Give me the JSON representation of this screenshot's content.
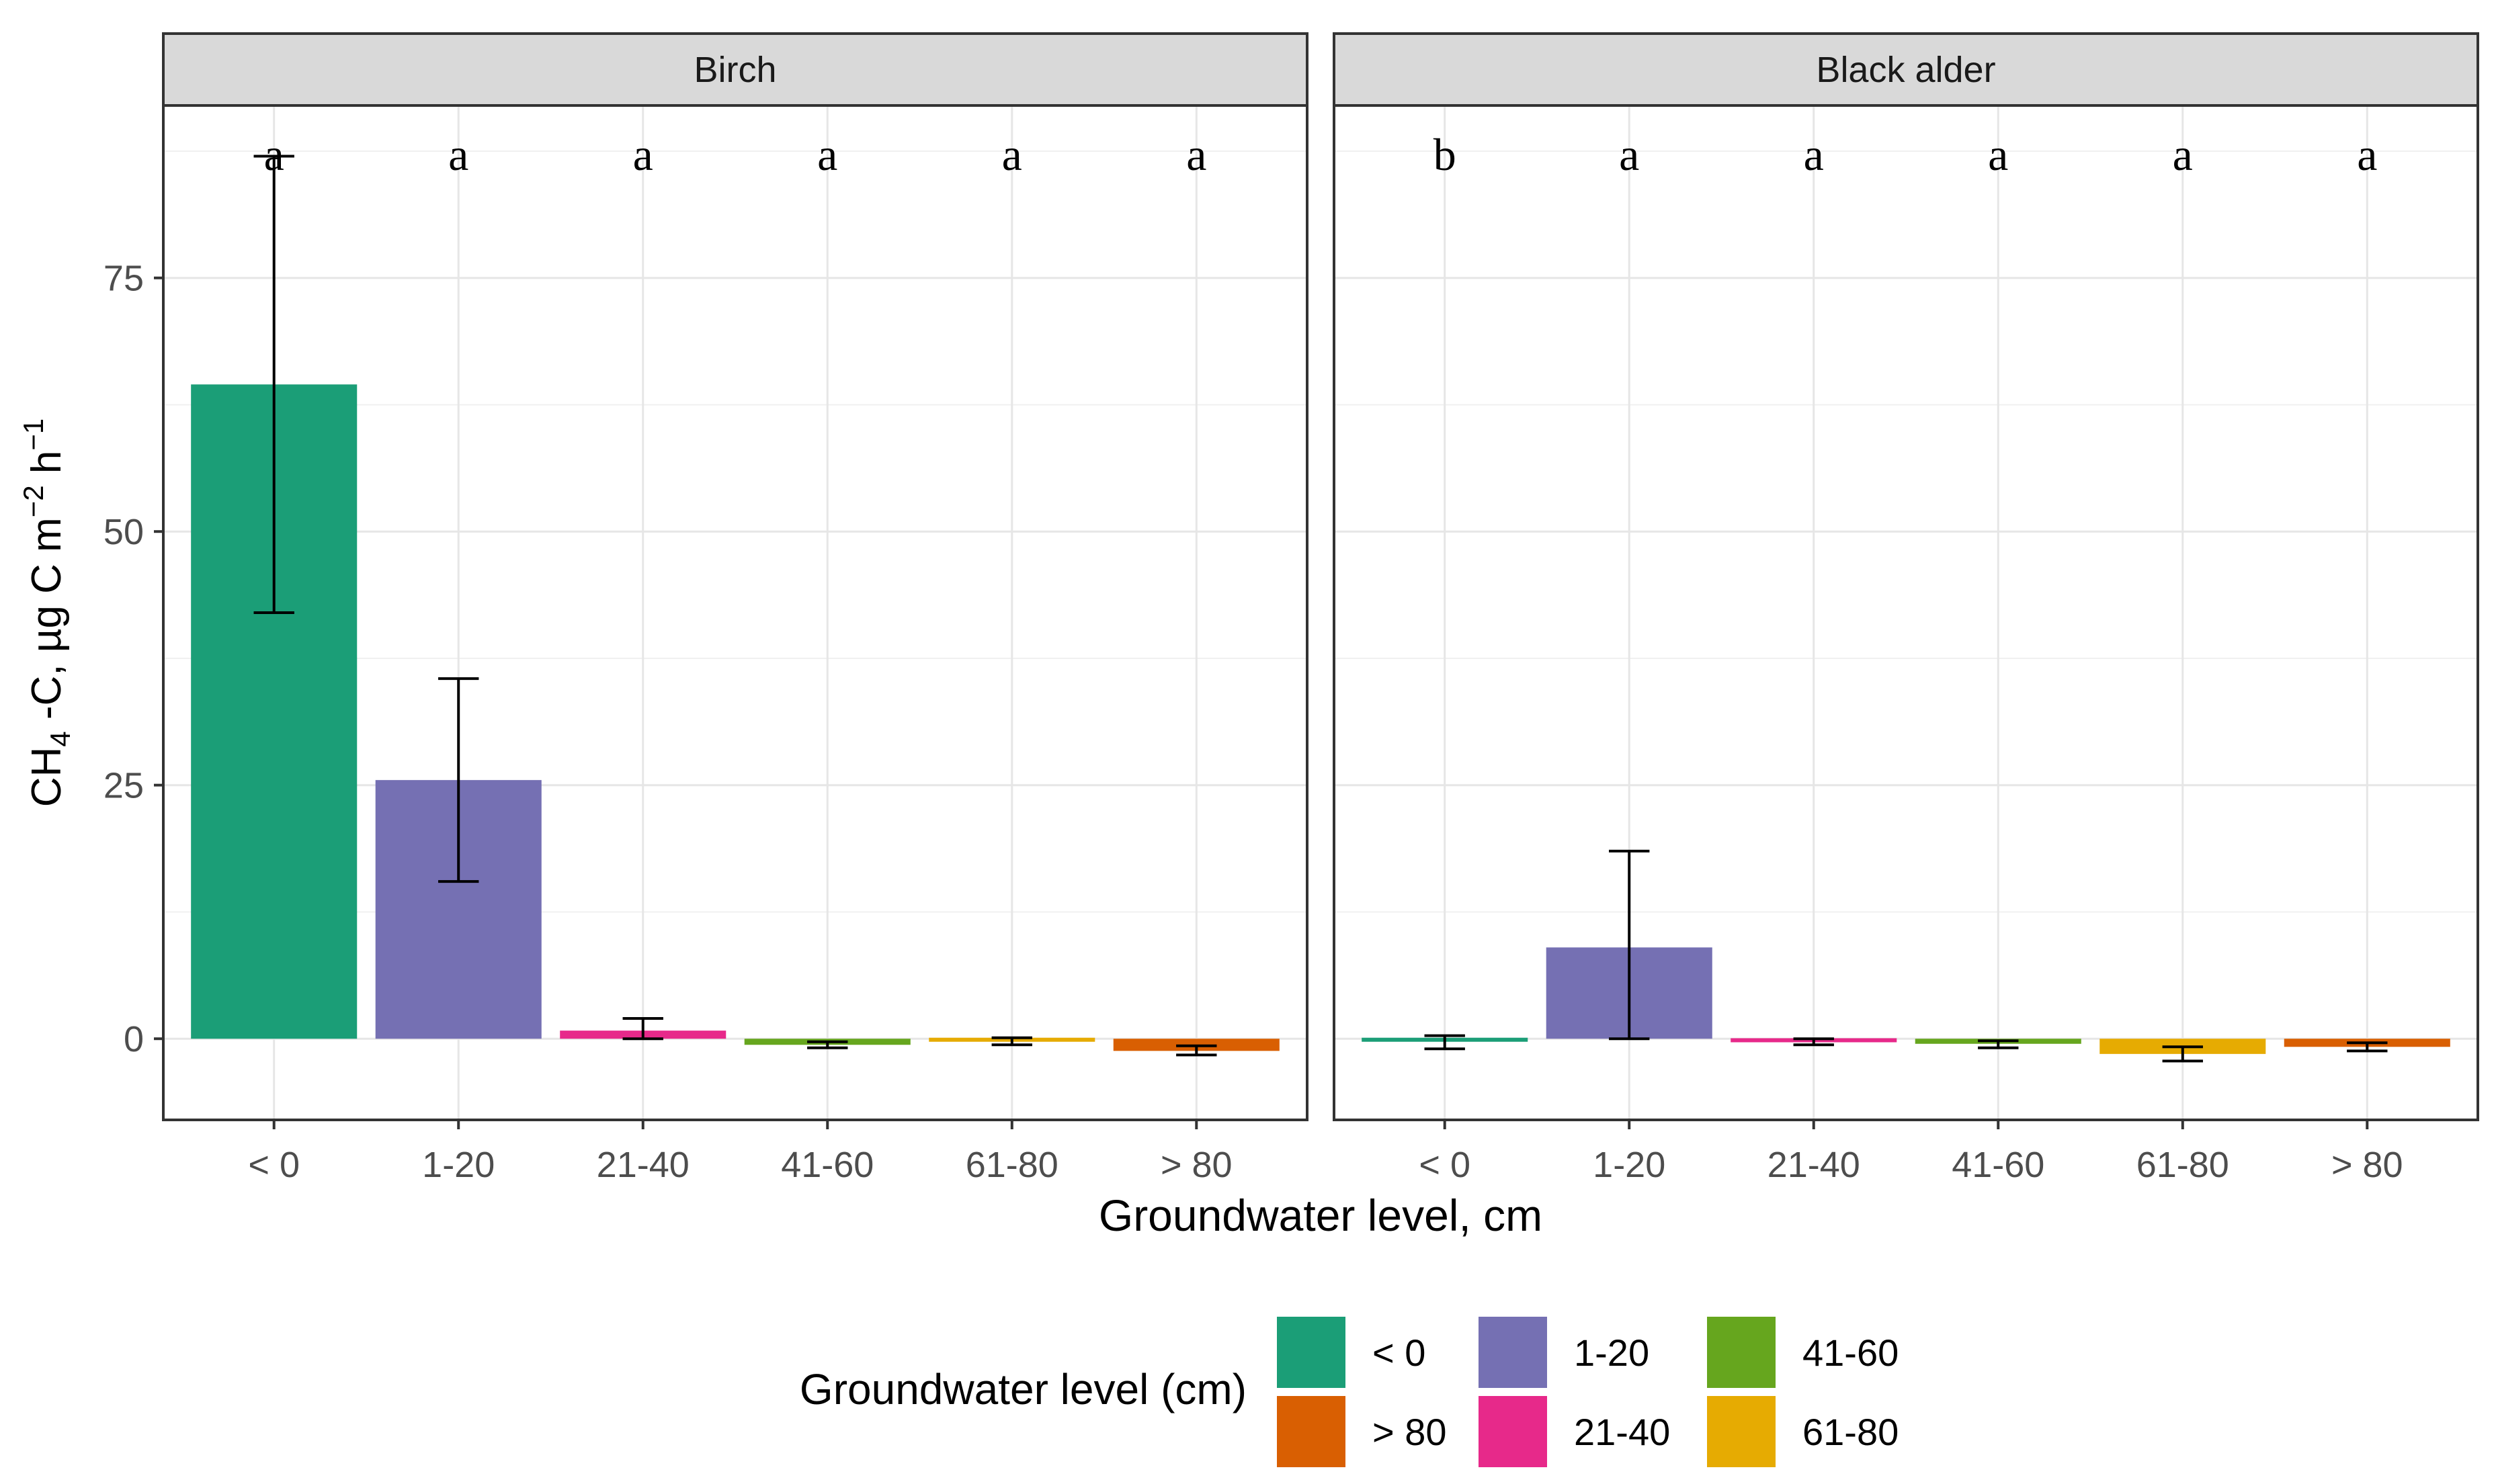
{
  "chart_data": {
    "type": "bar",
    "ylabel_main": "CH",
    "ylabel_sub": "4",
    "ylabel_mid": " -C, µg C m",
    "ylabel_sup1": "−2",
    "ylabel_mid2": " h",
    "ylabel_sup2": "−1",
    "xlabel": "Groundwater level, cm",
    "categories": [
      "< 0",
      "1-20",
      "21-40",
      "41-60",
      "61-80",
      "> 80"
    ],
    "colors": [
      "#1b9e77",
      "#7570b3",
      "#e7298a",
      "#66a61e",
      "#e6ab02",
      "#d95f02"
    ],
    "ylim": [
      -8,
      92
    ],
    "yticks": [
      0,
      25,
      50,
      75
    ],
    "facets": [
      {
        "title": "Birch",
        "values": [
          64.5,
          25.5,
          0.8,
          -0.6,
          -0.2,
          -1.2
        ],
        "err_low": [
          42,
          15.5,
          0,
          -0.9,
          -0.6,
          -1.6
        ],
        "err_high": [
          87,
          35.5,
          2,
          -0.3,
          0.1,
          -0.7
        ],
        "letters": [
          "a",
          "a",
          "a",
          "a",
          "a",
          "a"
        ]
      },
      {
        "title": "Black alder",
        "values": [
          -0.2,
          9,
          -0.3,
          -0.5,
          -1.5,
          -0.8
        ],
        "err_low": [
          -1,
          0,
          -0.6,
          -0.9,
          -2.2,
          -1.2
        ],
        "err_high": [
          0.3,
          18.5,
          0,
          -0.2,
          -0.8,
          -0.4
        ],
        "letters": [
          "b",
          "a",
          "a",
          "a",
          "a",
          "a"
        ]
      }
    ],
    "legend": {
      "title": "Groundwater level (cm)",
      "items": [
        {
          "label": "< 0",
          "color": "#1b9e77"
        },
        {
          "label": "1-20",
          "color": "#7570b3"
        },
        {
          "label": "41-60",
          "color": "#66a61e"
        },
        {
          "label": "> 80",
          "color": "#d95f02"
        },
        {
          "label": "21-40",
          "color": "#e7298a"
        },
        {
          "label": "61-80",
          "color": "#e6ab02"
        }
      ]
    }
  }
}
